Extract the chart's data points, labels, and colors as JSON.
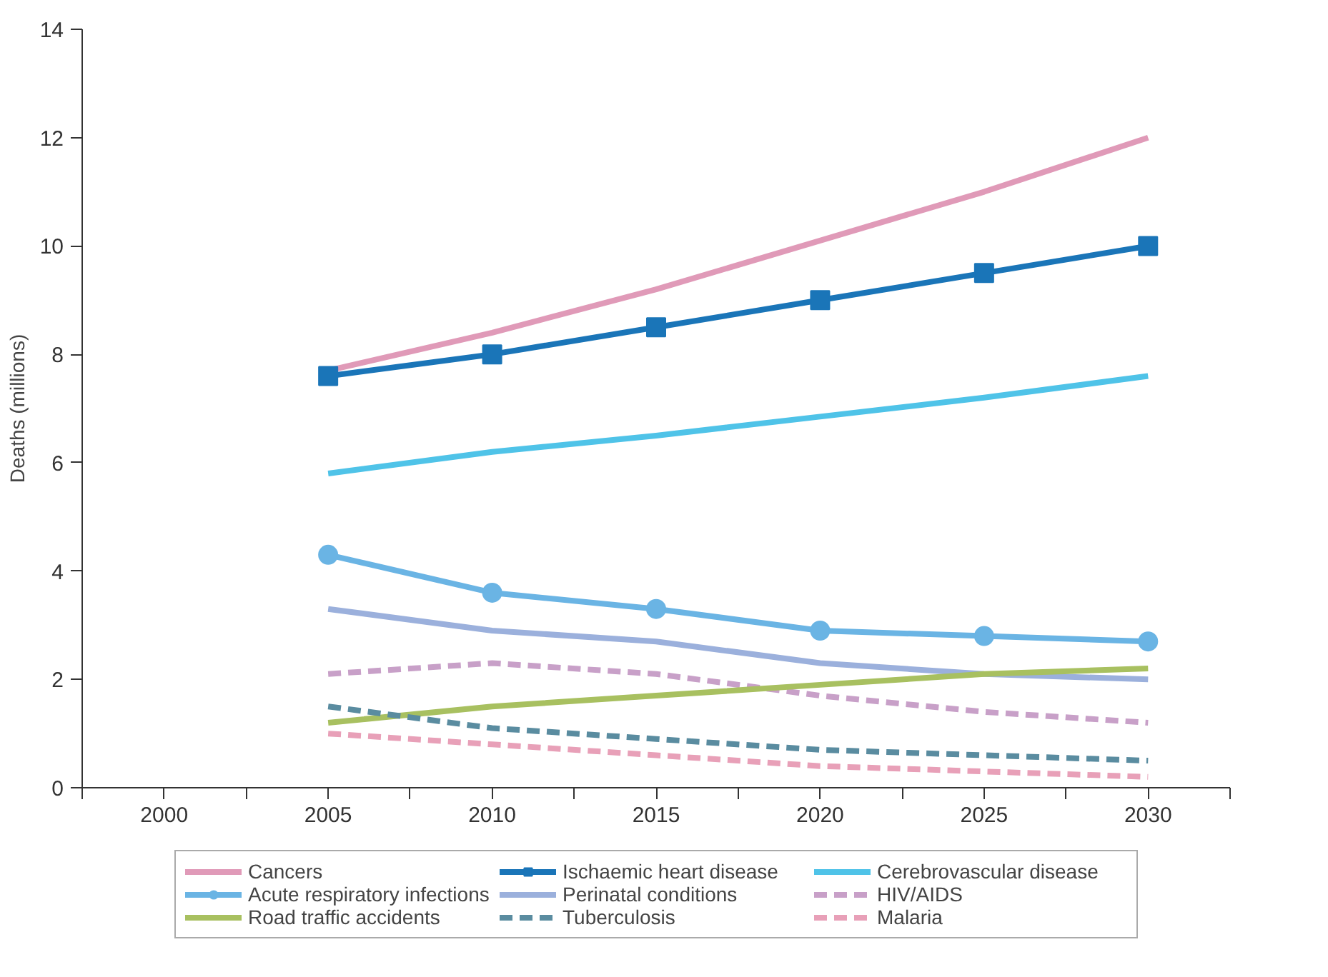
{
  "chart_data": {
    "type": "line",
    "ylabel": "Deaths (millions)",
    "x": [
      2005,
      2010,
      2015,
      2020,
      2025,
      2030
    ],
    "xlim": [
      1997.5,
      2032.5
    ],
    "xticks": [
      {
        "value": 1997.5,
        "label": null
      },
      2000,
      {
        "value": 2002.5,
        "label": null
      },
      2005,
      {
        "value": 2007.5,
        "label": null
      },
      2010,
      {
        "value": 2012.5,
        "label": null
      },
      2015,
      {
        "value": 2017.5,
        "label": null
      },
      2020,
      {
        "value": 2022.5,
        "label": null
      },
      2025,
      {
        "value": 2027.5,
        "label": null
      },
      2030,
      {
        "value": 2032.5,
        "label": null
      }
    ],
    "ylim": [
      0,
      14
    ],
    "yticks": [
      0,
      2,
      4,
      6,
      8,
      10,
      12,
      14
    ],
    "grid": false,
    "legend": "bottom",
    "line_style": "solid",
    "marker": "none",
    "series": [
      {
        "name": "Cancers",
        "color": "#e09ab8",
        "values": [
          7.7,
          8.4,
          9.2,
          10.1,
          11.0,
          12.0
        ]
      },
      {
        "name": "Ischaemic heart disease",
        "color": "#1a75b8",
        "marker": "square",
        "values": [
          7.6,
          8.0,
          8.5,
          9.0,
          9.5,
          10.0
        ]
      },
      {
        "name": "Cerebrovascular disease",
        "color": "#4fc3e8",
        "values": [
          5.8,
          6.2,
          6.5,
          6.85,
          7.2,
          7.6
        ]
      },
      {
        "name": "Acute respiratory infections",
        "color": "#6ab4e4",
        "marker": "circle",
        "values": [
          4.3,
          3.6,
          3.3,
          2.9,
          2.8,
          2.7
        ]
      },
      {
        "name": "Perinatal conditions",
        "color": "#9bb0dc",
        "values": [
          3.3,
          2.9,
          2.7,
          2.3,
          2.1,
          2.0
        ]
      },
      {
        "name": "HIV/AIDS",
        "color": "#c8a0c8",
        "line_style": "dashed",
        "values": [
          2.1,
          2.3,
          2.1,
          1.7,
          1.4,
          1.2
        ]
      },
      {
        "name": "Road traffic accidents",
        "color": "#a8c060",
        "values": [
          1.2,
          1.5,
          1.7,
          1.9,
          2.1,
          2.2
        ]
      },
      {
        "name": "Tuberculosis",
        "color": "#5a8ca0",
        "line_style": "dashed",
        "values": [
          1.5,
          1.1,
          0.9,
          0.7,
          0.6,
          0.5
        ]
      },
      {
        "name": "Malaria",
        "color": "#e8a0b8",
        "line_style": "dashed",
        "values": [
          1.0,
          0.8,
          0.6,
          0.4,
          0.3,
          0.2
        ]
      }
    ]
  }
}
